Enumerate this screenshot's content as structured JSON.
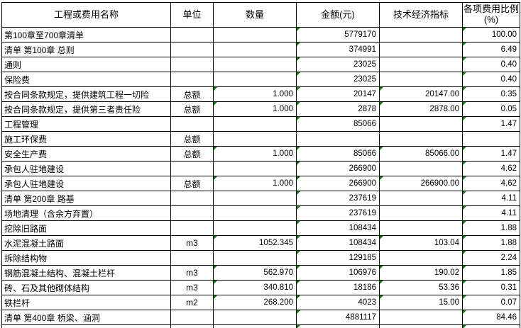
{
  "table": {
    "columns": [
      {
        "key": "name",
        "label": "工程或费用名称"
      },
      {
        "key": "unit",
        "label": "单位"
      },
      {
        "key": "qty",
        "label": "数量"
      },
      {
        "key": "amount",
        "label": "金额(元)"
      },
      {
        "key": "indicator",
        "label": "技术经济指标"
      },
      {
        "key": "ratio",
        "label": "各项费用比例",
        "label2": "(%)"
      }
    ],
    "rows": [
      {
        "name": "第100章至700章清单",
        "unit": "",
        "qty": "",
        "amount": "5779170",
        "indicator": "",
        "ratio": "100.00"
      },
      {
        "name": "清单 第100章 总则",
        "unit": "",
        "qty": "",
        "amount": "374991",
        "indicator": "",
        "ratio": "6.49"
      },
      {
        "name": "通则",
        "unit": "",
        "qty": "",
        "amount": "23025",
        "indicator": "",
        "ratio": "0.40"
      },
      {
        "name": "保险费",
        "unit": "",
        "qty": "",
        "amount": "23025",
        "indicator": "",
        "ratio": "0.40"
      },
      {
        "name": "按合同条款规定，提供建筑工程一切险",
        "unit": "总额",
        "qty": "1.000",
        "amount": "20147",
        "indicator": "20147.00",
        "ratio": "0.35"
      },
      {
        "name": "按合同条款规定，提供第三者责任险",
        "unit": "总额",
        "qty": "1.000",
        "amount": "2878",
        "indicator": "2878.00",
        "ratio": "0.05"
      },
      {
        "name": "工程管理",
        "unit": "",
        "qty": "",
        "amount": "85066",
        "indicator": "",
        "ratio": "1.47"
      },
      {
        "name": "施工环保费",
        "unit": "总额",
        "qty": "",
        "amount": "",
        "indicator": "",
        "ratio": ""
      },
      {
        "name": "安全生产费",
        "unit": "总额",
        "qty": "1.000",
        "amount": "85066",
        "indicator": "85066.00",
        "ratio": "1.47"
      },
      {
        "name": "承包人驻地建设",
        "unit": "",
        "qty": "",
        "amount": "266900",
        "indicator": "",
        "ratio": "4.62"
      },
      {
        "name": "承包人驻地建设",
        "unit": "总额",
        "qty": "1.000",
        "amount": "266900",
        "indicator": "266900.00",
        "ratio": "4.62"
      },
      {
        "name": "清单 第200章 路基",
        "unit": "",
        "qty": "",
        "amount": "237619",
        "indicator": "",
        "ratio": "4.11"
      },
      {
        "name": "场地清理（含余方弃置）",
        "unit": "",
        "qty": "",
        "amount": "237619",
        "indicator": "",
        "ratio": "4.11"
      },
      {
        "name": "挖除旧路面",
        "unit": "",
        "qty": "",
        "amount": "108434",
        "indicator": "",
        "ratio": "1.88"
      },
      {
        "name": "水泥混凝土路面",
        "unit": "m3",
        "qty": "1052.345",
        "amount": "108434",
        "indicator": "103.04",
        "ratio": "1.88"
      },
      {
        "name": "拆除结构物",
        "unit": "",
        "qty": "",
        "amount": "129185",
        "indicator": "",
        "ratio": "2.24"
      },
      {
        "name": "钢筋混凝土结构、混凝土栏杆",
        "unit": "m3",
        "qty": "562.970",
        "amount": "106976",
        "indicator": "190.02",
        "ratio": "1.85"
      },
      {
        "name": "砖、石及其他砌体结构",
        "unit": "m3",
        "qty": "340.810",
        "amount": "18186",
        "indicator": "53.36",
        "ratio": "0.31"
      },
      {
        "name": "铁栏杆",
        "unit": "m2",
        "qty": "268.200",
        "amount": "4023",
        "indicator": "15.00",
        "ratio": "0.07"
      },
      {
        "name": "清单 第400章 桥梁、涵洞",
        "unit": "",
        "qty": "",
        "amount": "4881117",
        "indicator": "",
        "ratio": "84.46"
      }
    ],
    "partial_row_flags": [
      "amount",
      "ratio"
    ]
  },
  "colors": {
    "error_flag_green": "#038003",
    "grid_border": "#000000",
    "background": "#ffffff"
  }
}
